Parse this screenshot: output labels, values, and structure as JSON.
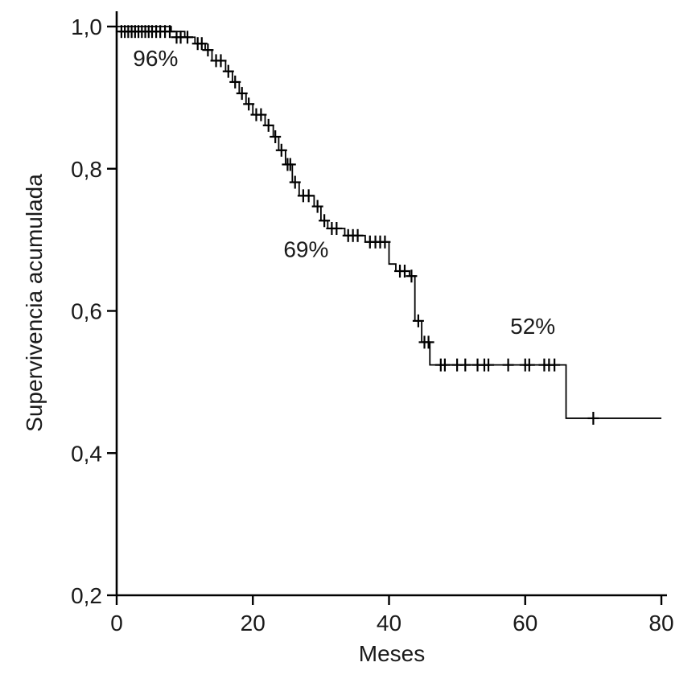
{
  "page": {
    "background_color": "#ffffff"
  },
  "chart_data": {
    "type": "line",
    "chart_style": "kaplan-meier-step-function",
    "title": "",
    "xlabel": "Meses",
    "ylabel": "Supervivencia acumulada",
    "xlim": [
      0,
      80
    ],
    "ylim": [
      0.2,
      1.0
    ],
    "grid": false,
    "legend_position": "none",
    "line_color": "#000000",
    "text_color": "#1a1a1a",
    "x_ticks": [
      {
        "value": 0,
        "label": "0"
      },
      {
        "value": 20,
        "label": "20"
      },
      {
        "value": 40,
        "label": "40"
      },
      {
        "value": 60,
        "label": "60"
      },
      {
        "value": 80,
        "label": "80"
      }
    ],
    "y_ticks": [
      {
        "value": 1.0,
        "label": "1,0"
      },
      {
        "value": 0.8,
        "label": "0,8"
      },
      {
        "value": 0.6,
        "label": "0,6"
      },
      {
        "value": 0.4,
        "label": "0,4"
      },
      {
        "value": 0.2,
        "label": "0,2"
      }
    ],
    "annotations": [
      {
        "text": "96%",
        "x": 2.4,
        "y": 0.956
      },
      {
        "text": "69%",
        "x": 24.5,
        "y": 0.687
      },
      {
        "text": "52%",
        "x": 57.8,
        "y": 0.579
      }
    ],
    "survival_steps": [
      [
        0,
        1.0
      ],
      [
        8,
        1.0
      ],
      [
        8,
        0.993
      ],
      [
        10,
        0.993
      ],
      [
        10,
        0.985
      ],
      [
        11.5,
        0.985
      ],
      [
        11.5,
        0.976
      ],
      [
        13,
        0.976
      ],
      [
        13,
        0.967
      ],
      [
        14,
        0.967
      ],
      [
        14,
        0.952
      ],
      [
        16,
        0.952
      ],
      [
        16,
        0.937
      ],
      [
        17,
        0.937
      ],
      [
        17,
        0.922
      ],
      [
        18,
        0.922
      ],
      [
        18,
        0.906
      ],
      [
        19,
        0.906
      ],
      [
        19,
        0.891
      ],
      [
        20,
        0.891
      ],
      [
        20,
        0.876
      ],
      [
        21.8,
        0.876
      ],
      [
        21.8,
        0.861
      ],
      [
        23,
        0.861
      ],
      [
        23,
        0.845
      ],
      [
        23.8,
        0.845
      ],
      [
        23.8,
        0.826
      ],
      [
        24.8,
        0.826
      ],
      [
        24.8,
        0.806
      ],
      [
        25.8,
        0.806
      ],
      [
        25.8,
        0.781
      ],
      [
        26.8,
        0.781
      ],
      [
        26.8,
        0.762
      ],
      [
        29,
        0.762
      ],
      [
        29,
        0.747
      ],
      [
        30,
        0.747
      ],
      [
        30,
        0.727
      ],
      [
        31,
        0.727
      ],
      [
        31,
        0.716
      ],
      [
        33.5,
        0.716
      ],
      [
        33.5,
        0.706
      ],
      [
        36.5,
        0.706
      ],
      [
        36.5,
        0.697
      ],
      [
        40,
        0.697
      ],
      [
        40,
        0.666
      ],
      [
        41,
        0.666
      ],
      [
        41,
        0.656
      ],
      [
        43,
        0.656
      ],
      [
        43,
        0.649
      ],
      [
        43.8,
        0.649
      ],
      [
        43.8,
        0.586
      ],
      [
        44.8,
        0.586
      ],
      [
        44.8,
        0.556
      ],
      [
        46,
        0.556
      ],
      [
        46,
        0.524
      ],
      [
        47,
        0.524
      ],
      [
        47,
        0.524
      ],
      [
        66,
        0.524
      ],
      [
        66,
        0.449
      ],
      [
        80,
        0.449
      ]
    ],
    "censor_marks": [
      [
        0.7,
        0.993
      ],
      [
        1.2,
        0.993
      ],
      [
        1.7,
        0.993
      ],
      [
        2.2,
        0.993
      ],
      [
        2.7,
        0.993
      ],
      [
        3.2,
        0.993
      ],
      [
        3.7,
        0.993
      ],
      [
        4.2,
        0.993
      ],
      [
        4.7,
        0.993
      ],
      [
        5.2,
        0.993
      ],
      [
        5.8,
        0.993
      ],
      [
        6.4,
        0.993
      ],
      [
        7.1,
        0.993
      ],
      [
        7.8,
        0.993
      ],
      [
        8.8,
        0.985
      ],
      [
        9.4,
        0.985
      ],
      [
        10.4,
        0.985
      ],
      [
        11.9,
        0.976
      ],
      [
        12.5,
        0.976
      ],
      [
        13.4,
        0.967
      ],
      [
        14.6,
        0.952
      ],
      [
        15.3,
        0.952
      ],
      [
        16.4,
        0.937
      ],
      [
        17.4,
        0.922
      ],
      [
        18.4,
        0.906
      ],
      [
        19.4,
        0.891
      ],
      [
        20.5,
        0.876
      ],
      [
        21.2,
        0.876
      ],
      [
        22.3,
        0.861
      ],
      [
        23.3,
        0.845
      ],
      [
        24.2,
        0.826
      ],
      [
        25.1,
        0.806
      ],
      [
        25.5,
        0.806
      ],
      [
        26.2,
        0.781
      ],
      [
        27.4,
        0.762
      ],
      [
        28.2,
        0.762
      ],
      [
        29.5,
        0.747
      ],
      [
        30.5,
        0.727
      ],
      [
        31.6,
        0.716
      ],
      [
        32.3,
        0.716
      ],
      [
        34.0,
        0.706
      ],
      [
        34.7,
        0.706
      ],
      [
        35.4,
        0.706
      ],
      [
        37.2,
        0.697
      ],
      [
        38.0,
        0.697
      ],
      [
        38.7,
        0.697
      ],
      [
        39.4,
        0.697
      ],
      [
        41.6,
        0.656
      ],
      [
        42.3,
        0.656
      ],
      [
        43.3,
        0.649
      ],
      [
        44.3,
        0.586
      ],
      [
        45.2,
        0.556
      ],
      [
        45.8,
        0.556
      ],
      [
        47.6,
        0.524
      ],
      [
        48.2,
        0.524
      ],
      [
        50.0,
        0.524
      ],
      [
        51.2,
        0.524
      ],
      [
        53.0,
        0.524
      ],
      [
        54.0,
        0.524
      ],
      [
        54.6,
        0.524
      ],
      [
        57.5,
        0.524
      ],
      [
        60.0,
        0.524
      ],
      [
        60.6,
        0.524
      ],
      [
        62.8,
        0.524
      ],
      [
        63.5,
        0.524
      ],
      [
        64.3,
        0.524
      ],
      [
        70.0,
        0.449
      ]
    ]
  }
}
